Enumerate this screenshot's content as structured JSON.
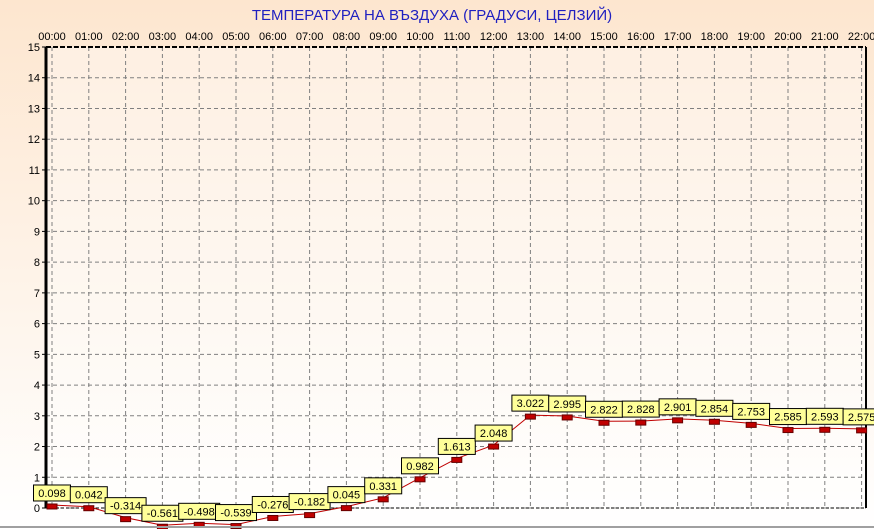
{
  "chart_data": {
    "type": "line",
    "title": "ТЕМПЕРАТУРА НА ВЪЗДУХА  (ГРАДУСИ, ЦЕЛЗИЙ)",
    "x": [
      "00:00",
      "01:00",
      "02:00",
      "03:00",
      "04:00",
      "05:00",
      "06:00",
      "07:00",
      "08:00",
      "09:00",
      "10:00",
      "11:00",
      "12:00",
      "13:00",
      "14:00",
      "15:00",
      "16:00",
      "17:00",
      "18:00",
      "19:00",
      "20:00",
      "21:00",
      "22:00"
    ],
    "values": [
      0.098,
      0.042,
      -0.314,
      -0.561,
      -0.498,
      -0.539,
      -0.276,
      -0.182,
      0.045,
      0.331,
      0.982,
      1.613,
      2.048,
      3.022,
      2.995,
      2.822,
      2.828,
      2.901,
      2.854,
      2.753,
      2.585,
      2.593,
      2.575
    ],
    "labels": [
      "0.098",
      "0.042",
      "-0.314",
      "-0.561",
      "-0.498",
      "-0.539",
      "-0.276",
      "-0.182",
      "0.045",
      "0.331",
      "0.982",
      "1.613",
      "2.048",
      "3.022",
      "2.995",
      "2.822",
      "2.828",
      "2.901",
      "2.854",
      "2.753",
      "2.585",
      "2.593",
      "2.575"
    ],
    "yticks": [
      "0",
      "1",
      "2",
      "3",
      "4",
      "5",
      "6",
      "7",
      "8",
      "9",
      "10",
      "11",
      "12",
      "13",
      "14",
      "15"
    ],
    "ylim": [
      0,
      15
    ],
    "x_axis_position": "top",
    "grid": true,
    "colors": {
      "title": "#2020c0",
      "line": "#c00000",
      "marker": "#c00000",
      "label_bg": "#ffff99",
      "background_top": "#fde6cf",
      "background_bottom": "#ffffff"
    }
  }
}
